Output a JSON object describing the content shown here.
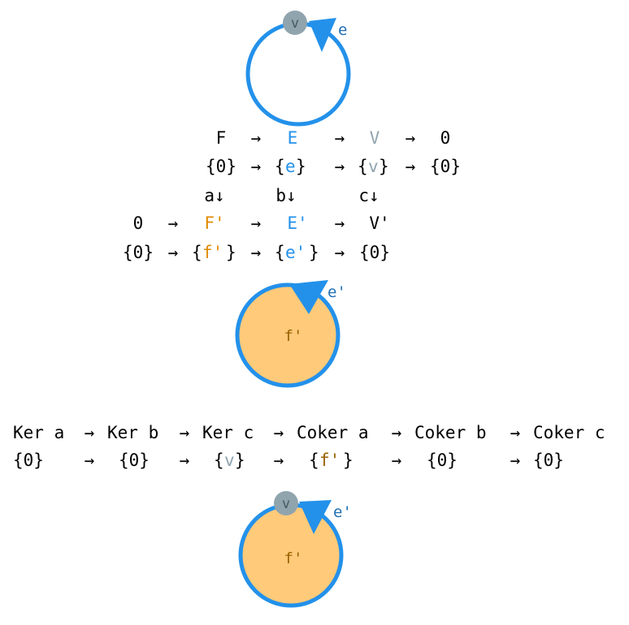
{
  "colors": {
    "edge_blue": "#2391ea",
    "label_blue": "#1f6fb5",
    "vertex_gray": "#90a4ae",
    "vertex_text": "#455a64",
    "face_fill": "#ffca7a",
    "face_text": "#9a6200",
    "text": "#000000"
  },
  "graphs": {
    "top": {
      "vertex": "v",
      "edge": "e"
    },
    "middle": {
      "edge": "e'",
      "face": "f'"
    },
    "bottom": {
      "vertex": "v",
      "edge": "e'",
      "face": "f'"
    }
  },
  "diagram": {
    "row1": [
      "F",
      "→",
      "E",
      "→",
      "V",
      "→",
      "0"
    ],
    "row2": [
      "{0}",
      "→",
      "{",
      "e",
      "}",
      "→",
      "{",
      "v",
      "}",
      "→",
      "{0}"
    ],
    "maps": [
      "a↓",
      "b↓",
      "c↓"
    ],
    "row3": [
      "0",
      "→",
      "F'",
      "→",
      "E'",
      "→",
      "V'"
    ],
    "row4": [
      "{0}",
      "→",
      "{",
      "f'",
      "}",
      "→",
      "{",
      "e'",
      "}",
      "→",
      "{0}"
    ]
  },
  "sequence": {
    "terms": [
      "Ker a",
      "→",
      "Ker b",
      "→",
      "Ker c",
      "→",
      "Coker a",
      "→",
      "Coker b",
      "→",
      "Coker c"
    ],
    "values": [
      "{0}",
      "→",
      "{0}",
      "→",
      "{",
      "v",
      "}",
      "→",
      "{",
      "f'",
      "}",
      "→",
      "{0}",
      "→",
      "{0}"
    ]
  }
}
